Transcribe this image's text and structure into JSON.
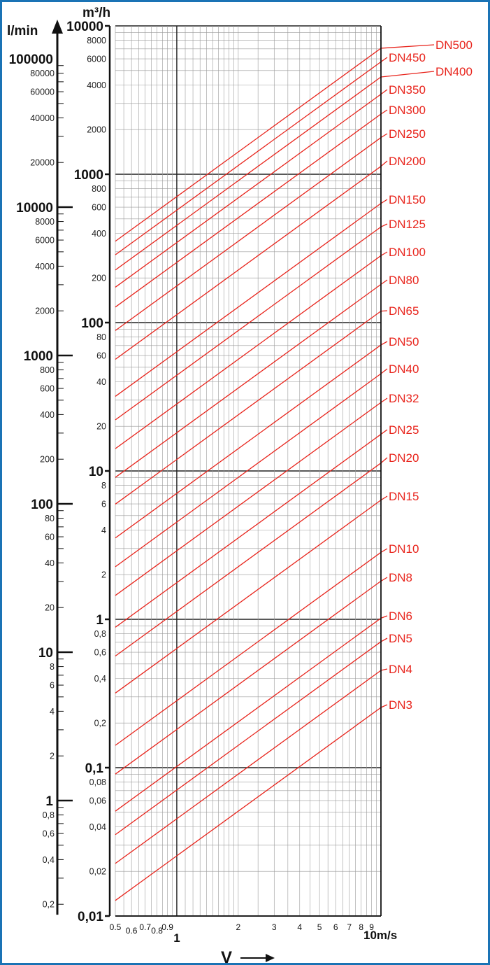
{
  "chart_data": {
    "type": "line",
    "title": "",
    "frame_color": "#1a73b5",
    "line_color": "#e8241c",
    "grid_color": "#9a9a9a",
    "major_grid_color": "#222222",
    "x_axis": {
      "scale": "log",
      "range": [
        0.5,
        10
      ],
      "unit_label": "10m/s",
      "arrow_label": "V",
      "ticks": [
        {
          "value": 0.5,
          "label": "0.5"
        },
        {
          "value": 0.6,
          "label": "0.6"
        },
        {
          "value": 0.7,
          "label": "0.7"
        },
        {
          "value": 0.8,
          "label": "0.8"
        },
        {
          "value": 0.9,
          "label": "0.9"
        },
        {
          "value": 1,
          "label": "1"
        },
        {
          "value": 2,
          "label": "2"
        },
        {
          "value": 3,
          "label": "3"
        },
        {
          "value": 4,
          "label": "4"
        },
        {
          "value": 5,
          "label": "5"
        },
        {
          "value": 6,
          "label": "6"
        },
        {
          "value": 7,
          "label": "7"
        },
        {
          "value": 8,
          "label": "8"
        },
        {
          "value": 9,
          "label": "9"
        }
      ]
    },
    "y_axis_m3h": {
      "scale": "log",
      "range": [
        0.01,
        10000
      ],
      "unit_label": "m³/h",
      "major_ticks": [
        {
          "value": 0.01,
          "label": "0,01"
        },
        {
          "value": 0.1,
          "label": "0,1"
        },
        {
          "value": 1,
          "label": "1"
        },
        {
          "value": 10,
          "label": "10"
        },
        {
          "value": 100,
          "label": "100"
        },
        {
          "value": 1000,
          "label": "1000"
        },
        {
          "value": 10000,
          "label": "10000"
        }
      ],
      "minor_ticks": [
        {
          "value": 0.02,
          "label": "0,02"
        },
        {
          "value": 0.04,
          "label": "0,04"
        },
        {
          "value": 0.06,
          "label": "0,06"
        },
        {
          "value": 0.08,
          "label": "0,08"
        },
        {
          "value": 0.2,
          "label": "0,2"
        },
        {
          "value": 0.4,
          "label": "0,4"
        },
        {
          "value": 0.6,
          "label": "0,6"
        },
        {
          "value": 0.8,
          "label": "0,8"
        },
        {
          "value": 2,
          "label": "2"
        },
        {
          "value": 4,
          "label": "4"
        },
        {
          "value": 6,
          "label": "6"
        },
        {
          "value": 8,
          "label": "8"
        },
        {
          "value": 20,
          "label": "20"
        },
        {
          "value": 40,
          "label": "40"
        },
        {
          "value": 60,
          "label": "60"
        },
        {
          "value": 80,
          "label": "80"
        },
        {
          "value": 200,
          "label": "200"
        },
        {
          "value": 400,
          "label": "400"
        },
        {
          "value": 600,
          "label": "600"
        },
        {
          "value": 800,
          "label": "800"
        },
        {
          "value": 2000,
          "label": "2000"
        },
        {
          "value": 4000,
          "label": "4000"
        },
        {
          "value": 6000,
          "label": "6000"
        },
        {
          "value": 8000,
          "label": "8000"
        }
      ]
    },
    "y_axis_lmin": {
      "scale": "log",
      "unit_label": "l/min",
      "major_ticks": [
        {
          "value": 1,
          "label": "1"
        },
        {
          "value": 10,
          "label": "10"
        },
        {
          "value": 100,
          "label": "100"
        },
        {
          "value": 1000,
          "label": "1000"
        },
        {
          "value": 10000,
          "label": "10000"
        },
        {
          "value": 100000,
          "label": "100000"
        }
      ],
      "minor_ticks": [
        {
          "value": 0.2,
          "label": "0,2"
        },
        {
          "value": 0.4,
          "label": "0,4"
        },
        {
          "value": 0.6,
          "label": "0,6"
        },
        {
          "value": 0.8,
          "label": "0,8"
        },
        {
          "value": 2,
          "label": "2"
        },
        {
          "value": 4,
          "label": "4"
        },
        {
          "value": 6,
          "label": "6"
        },
        {
          "value": 8,
          "label": "8"
        },
        {
          "value": 20,
          "label": "20"
        },
        {
          "value": 40,
          "label": "40"
        },
        {
          "value": 60,
          "label": "60"
        },
        {
          "value": 80,
          "label": "80"
        },
        {
          "value": 200,
          "label": "200"
        },
        {
          "value": 400,
          "label": "400"
        },
        {
          "value": 600,
          "label": "600"
        },
        {
          "value": 800,
          "label": "800"
        },
        {
          "value": 2000,
          "label": "2000"
        },
        {
          "value": 4000,
          "label": "4000"
        },
        {
          "value": 6000,
          "label": "6000"
        },
        {
          "value": 8000,
          "label": "8000"
        },
        {
          "value": 20000,
          "label": "20000"
        },
        {
          "value": 40000,
          "label": "40000"
        },
        {
          "value": 60000,
          "label": "60000"
        },
        {
          "value": 80000,
          "label": "80000"
        }
      ]
    },
    "series": [
      {
        "name": "DN3",
        "diameter_mm": 3
      },
      {
        "name": "DN4",
        "diameter_mm": 4
      },
      {
        "name": "DN5",
        "diameter_mm": 5
      },
      {
        "name": "DN6",
        "diameter_mm": 6
      },
      {
        "name": "DN8",
        "diameter_mm": 8
      },
      {
        "name": "DN10",
        "diameter_mm": 10
      },
      {
        "name": "DN15",
        "diameter_mm": 15
      },
      {
        "name": "DN20",
        "diameter_mm": 20
      },
      {
        "name": "DN25",
        "diameter_mm": 25
      },
      {
        "name": "DN32",
        "diameter_mm": 32
      },
      {
        "name": "DN40",
        "diameter_mm": 40
      },
      {
        "name": "DN50",
        "diameter_mm": 50
      },
      {
        "name": "DN65",
        "diameter_mm": 65
      },
      {
        "name": "DN80",
        "diameter_mm": 80
      },
      {
        "name": "DN100",
        "diameter_mm": 100
      },
      {
        "name": "DN125",
        "diameter_mm": 125
      },
      {
        "name": "DN150",
        "diameter_mm": 150
      },
      {
        "name": "DN200",
        "diameter_mm": 200
      },
      {
        "name": "DN250",
        "diameter_mm": 250
      },
      {
        "name": "DN300",
        "diameter_mm": 300
      },
      {
        "name": "DN350",
        "diameter_mm": 350
      },
      {
        "name": "DN400",
        "diameter_mm": 400
      },
      {
        "name": "DN450",
        "diameter_mm": 450
      },
      {
        "name": "DN500",
        "diameter_mm": 500
      }
    ]
  }
}
